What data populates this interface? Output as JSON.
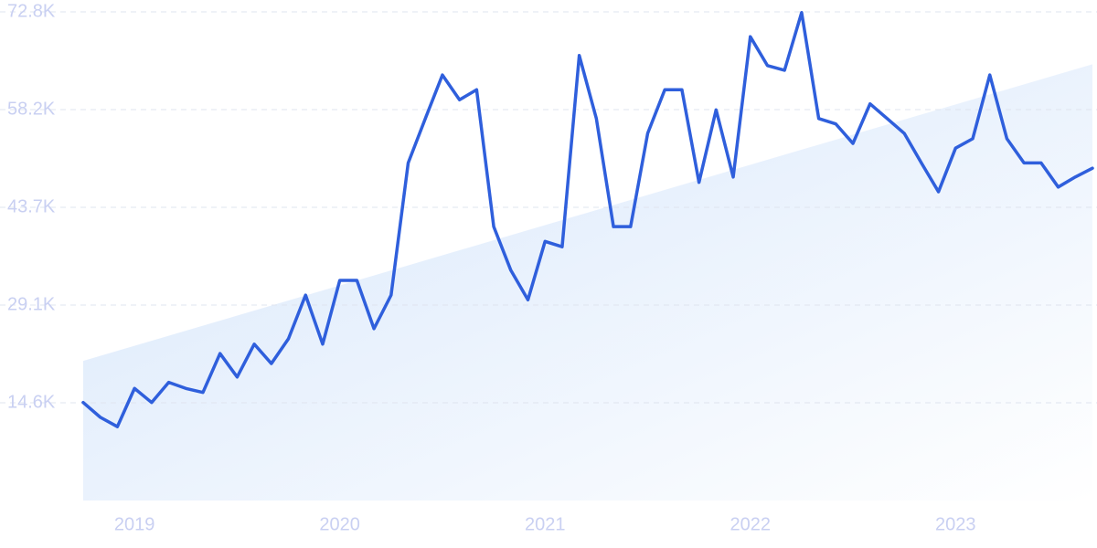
{
  "chart_data": {
    "type": "line",
    "categories": [
      null,
      null,
      null,
      "2019",
      null,
      null,
      null,
      null,
      null,
      null,
      null,
      null,
      null,
      null,
      null,
      "2020",
      null,
      null,
      null,
      null,
      null,
      null,
      null,
      null,
      null,
      null,
      null,
      "2021",
      null,
      null,
      null,
      null,
      null,
      null,
      null,
      null,
      null,
      null,
      null,
      "2022",
      null,
      null,
      null,
      null,
      null,
      null,
      null,
      null,
      null,
      null,
      null,
      "2023",
      null,
      null,
      null,
      null,
      null,
      null,
      null,
      null
    ],
    "series": [
      {
        "color": "#2f5fdc",
        "values": [
          14600,
          12400,
          11000,
          16700,
          14600,
          17600,
          16700,
          16100,
          21900,
          18400,
          23300,
          20400,
          24100,
          30600,
          23300,
          32800,
          32800,
          25600,
          30600,
          50300,
          56900,
          63400,
          59700,
          61200,
          40800,
          34300,
          29900,
          38600,
          37800,
          66300,
          56900,
          40800,
          40800,
          54700,
          61200,
          61200,
          47400,
          58200,
          48200,
          69100,
          64800,
          64100,
          72700,
          56900,
          56100,
          53200,
          59100,
          56900,
          54700,
          50300,
          46000,
          52500,
          53900,
          63400,
          53900,
          50300,
          50300,
          46700,
          48200,
          49500
        ]
      }
    ],
    "trend": [
      20800,
      65000
    ],
    "trend_color": "#d6e6fb",
    "ylim": [
      0,
      72800
    ],
    "yticks": [
      {
        "value": 14560,
        "label": "14.6K"
      },
      {
        "value": 29120,
        "label": "29.1K"
      },
      {
        "value": 43680,
        "label": "43.7K"
      },
      {
        "value": 58240,
        "label": "58.2K"
      },
      {
        "value": 72800,
        "label": "72.8K"
      }
    ],
    "grid": true
  }
}
